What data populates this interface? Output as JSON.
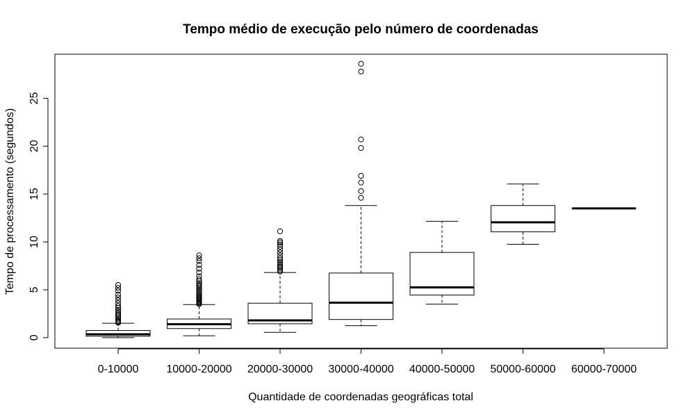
{
  "chart_data": {
    "type": "boxplot",
    "title": "Tempo médio de execução pelo número de coordenadas",
    "xlabel": "Quantidade de coordenadas geográficas total",
    "ylabel": "Tempo de processamento (segundos)",
    "ylim": [
      -1.1,
      29.6
    ],
    "yticks": [
      0,
      5,
      10,
      15,
      20,
      25
    ],
    "grid": false,
    "categories": [
      "0-10000",
      "10000-20000",
      "20000-30000",
      "30000-40000",
      "40000-50000",
      "50000-60000",
      "60000-70000"
    ],
    "boxes": [
      {
        "whisker_low": 0.0,
        "q1": 0.15,
        "median": 0.35,
        "q3": 0.75,
        "whisker_high": 1.5,
        "outliers": [
          1.55,
          1.65,
          1.75,
          1.9,
          2.05,
          2.2,
          2.35,
          2.5,
          2.7,
          2.9,
          3.1,
          3.3,
          3.6,
          3.9,
          4.2,
          4.5,
          4.9,
          5.2,
          5.5
        ]
      },
      {
        "whisker_low": 0.2,
        "q1": 0.95,
        "median": 1.4,
        "q3": 1.95,
        "whisker_high": 3.45,
        "outliers": [
          3.5,
          3.6,
          3.7,
          3.8,
          3.9,
          4.0,
          4.1,
          4.2,
          4.3,
          4.45,
          4.6,
          4.75,
          4.9,
          5.05,
          5.2,
          5.35,
          5.5,
          5.7,
          5.9,
          6.1,
          6.4,
          6.8,
          7.2,
          7.6,
          8.0,
          8.3,
          8.6
        ]
      },
      {
        "whisker_low": 0.55,
        "q1": 1.45,
        "median": 1.8,
        "q3": 3.6,
        "whisker_high": 6.8,
        "outliers": [
          6.9,
          7.05,
          7.2,
          7.35,
          7.5,
          7.7,
          7.9,
          8.1,
          8.3,
          8.6,
          8.9,
          9.2,
          9.5,
          9.75,
          9.95,
          10.1,
          11.1
        ]
      },
      {
        "whisker_low": 1.25,
        "q1": 1.9,
        "median": 3.65,
        "q3": 6.75,
        "whisker_high": 13.8,
        "outliers": [
          14.6,
          15.3,
          16.2,
          16.9,
          19.8,
          20.7,
          27.8,
          28.6
        ]
      },
      {
        "whisker_low": 3.5,
        "q1": 4.45,
        "median": 5.25,
        "q3": 8.9,
        "whisker_high": 12.15,
        "outliers": []
      },
      {
        "whisker_low": 9.75,
        "q1": 11.05,
        "median": 12.05,
        "q3": 13.8,
        "whisker_high": 16.05,
        "outliers": []
      },
      {
        "whisker_low": 13.5,
        "q1": 13.5,
        "median": 13.5,
        "q3": 13.5,
        "whisker_high": 13.5,
        "outliers": []
      }
    ]
  }
}
